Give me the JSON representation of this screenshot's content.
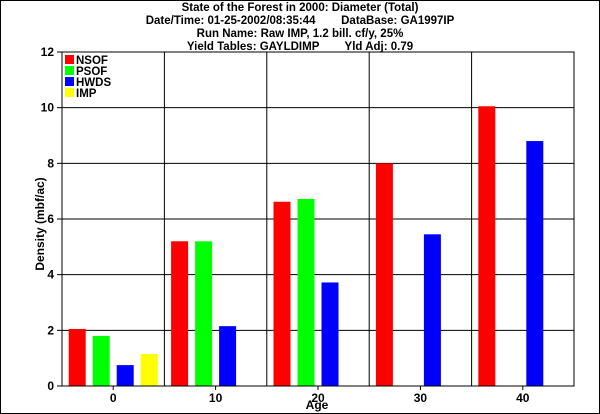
{
  "header": {
    "title": "State of the Forest in 2000: Diameter (Total)",
    "datetime": "Date/Time: 01-25-2002/08:35:44",
    "database": "DataBase: GA1997IP",
    "run_name": "Run Name: Raw IMP, 1.2 bill. cf/y, 25%",
    "yield_tables": "Yield Tables: GAYLDIMP",
    "yld_adj": "Yld Adj: 0.79"
  },
  "chart_data": {
    "type": "bar",
    "categories": [
      "0",
      "10",
      "20",
      "30",
      "40"
    ],
    "series": [
      {
        "name": "NSOF",
        "color": "#ff0000",
        "values": [
          2.05,
          5.2,
          6.62,
          8.0,
          10.05
        ]
      },
      {
        "name": "PSOF",
        "color": "#00ff00",
        "values": [
          1.8,
          5.2,
          6.72,
          null,
          null
        ]
      },
      {
        "name": "HWDS",
        "color": "#0000ff",
        "values": [
          0.75,
          2.15,
          3.72,
          5.45,
          8.8
        ]
      },
      {
        "name": "IMP",
        "color": "#ffff00",
        "values": [
          1.15,
          null,
          null,
          null,
          null
        ]
      }
    ],
    "xlabel": "Age",
    "ylabel": "Density (mbf/ac)",
    "ylim": [
      0,
      12
    ],
    "yticks": [
      "0",
      "2",
      "4",
      "6",
      "8",
      "10",
      "12"
    ],
    "grid": true,
    "legend": "top-left"
  }
}
